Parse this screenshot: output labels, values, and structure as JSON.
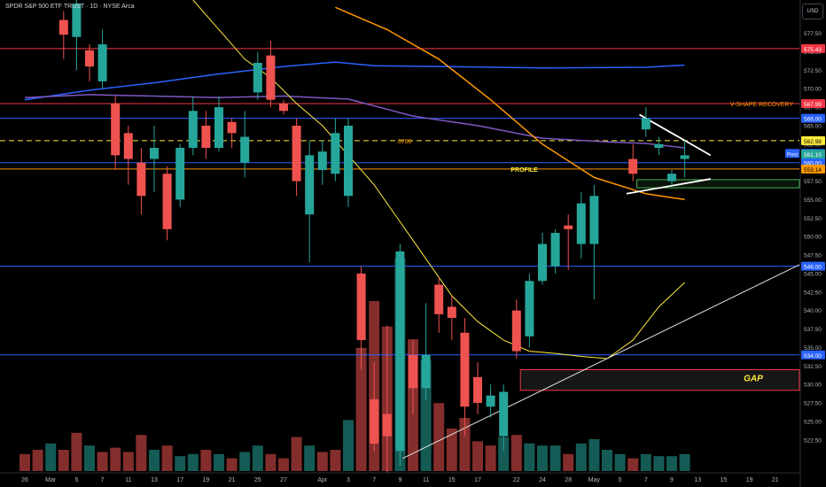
{
  "header": {
    "symbol_line": "SPDR S&P 500 ETF TRUST · 1D · NYSE Arca"
  },
  "currency": "USD",
  "colors": {
    "background": "#000000",
    "up": "#26a69a",
    "down": "#ef5350",
    "blue_line": "#2962ff",
    "red_line": "#f23645",
    "orange": "#ff9800",
    "yellow": "#ffeb3b",
    "purple": "#7e57c2",
    "axis_text": "#b2b5be"
  },
  "chart_data": {
    "type": "candlestick",
    "y_range": [
      521,
      582
    ],
    "y_ticks": [
      522.5,
      525.0,
      527.5,
      530.0,
      532.5,
      535.0,
      537.5,
      540.0,
      542.5,
      545.0,
      547.5,
      550.0,
      552.5,
      555.0,
      557.5,
      560.0,
      562.5,
      565.0,
      567.5,
      570.0,
      572.5,
      575.0,
      577.5,
      580.0
    ],
    "x_labels": [
      {
        "i": 0,
        "label": "26"
      },
      {
        "i": 2,
        "label": "Mar"
      },
      {
        "i": 4,
        "label": "5"
      },
      {
        "i": 6,
        "label": "7"
      },
      {
        "i": 8,
        "label": "11"
      },
      {
        "i": 10,
        "label": "13"
      },
      {
        "i": 12,
        "label": "17"
      },
      {
        "i": 14,
        "label": "19"
      },
      {
        "i": 16,
        "label": "21"
      },
      {
        "i": 18,
        "label": "25"
      },
      {
        "i": 20,
        "label": "27"
      },
      {
        "i": 23,
        "label": "Apr"
      },
      {
        "i": 25,
        "label": "3"
      },
      {
        "i": 27,
        "label": "7"
      },
      {
        "i": 29,
        "label": "9"
      },
      {
        "i": 31,
        "label": "11"
      },
      {
        "i": 33,
        "label": "15"
      },
      {
        "i": 35,
        "label": "17"
      },
      {
        "i": 38,
        "label": "22"
      },
      {
        "i": 40,
        "label": "24"
      },
      {
        "i": 42,
        "label": "28"
      },
      {
        "i": 44,
        "label": "May"
      },
      {
        "i": 46,
        "label": "5"
      },
      {
        "i": 48,
        "label": "7"
      },
      {
        "i": 50,
        "label": "9"
      },
      {
        "i": 52,
        "label": "13"
      },
      {
        "i": 54,
        "label": "15"
      },
      {
        "i": 56,
        "label": "19"
      },
      {
        "i": 58,
        "label": "21"
      },
      {
        "i": 60,
        "label": "23"
      }
    ],
    "candles": [
      {
        "i": 3,
        "o": 579.3,
        "h": 580.5,
        "l": 574.0,
        "c": 577.3
      },
      {
        "i": 4,
        "o": 577.0,
        "h": 582.0,
        "l": 572.5,
        "c": 581.5
      },
      {
        "i": 5,
        "o": 575.2,
        "h": 576.0,
        "l": 571.0,
        "c": 573.0
      },
      {
        "i": 6,
        "o": 571.0,
        "h": 578.0,
        "l": 570.0,
        "c": 576.0
      },
      {
        "i": 7,
        "o": 568.0,
        "h": 569.0,
        "l": 559.0,
        "c": 561.0
      },
      {
        "i": 8,
        "o": 564.0,
        "h": 565.0,
        "l": 557.0,
        "c": 560.5
      },
      {
        "i": 9,
        "o": 560.0,
        "h": 562.0,
        "l": 553.0,
        "c": 555.5
      },
      {
        "i": 10,
        "o": 560.5,
        "h": 565.0,
        "l": 556.0,
        "c": 562.0
      },
      {
        "i": 11,
        "o": 558.5,
        "h": 559.5,
        "l": 549.5,
        "c": 551.0
      },
      {
        "i": 12,
        "o": 555.0,
        "h": 562.5,
        "l": 554.0,
        "c": 562.0
      },
      {
        "i": 13,
        "o": 562.0,
        "h": 569.0,
        "l": 561.0,
        "c": 567.0
      },
      {
        "i": 14,
        "o": 565.0,
        "h": 567.0,
        "l": 560.5,
        "c": 562.0
      },
      {
        "i": 15,
        "o": 562.0,
        "h": 569.0,
        "l": 561.5,
        "c": 567.5
      },
      {
        "i": 16,
        "o": 565.5,
        "h": 566.0,
        "l": 562.0,
        "c": 564.0
      },
      {
        "i": 17,
        "o": 560.0,
        "h": 567.0,
        "l": 558.0,
        "c": 563.5
      },
      {
        "i": 18,
        "o": 569.5,
        "h": 575.0,
        "l": 568.5,
        "c": 573.5
      },
      {
        "i": 19,
        "o": 574.5,
        "h": 576.5,
        "l": 567.5,
        "c": 568.5
      },
      {
        "i": 20,
        "o": 568.0,
        "h": 568.5,
        "l": 566.5,
        "c": 567.0
      },
      {
        "i": 21,
        "o": 565.0,
        "h": 566.0,
        "l": 555.5,
        "c": 557.5
      },
      {
        "i": 22,
        "o": 553.0,
        "h": 563.0,
        "l": 546.5,
        "c": 561.0
      },
      {
        "i": 23,
        "o": 559.0,
        "h": 563.0,
        "l": 557.0,
        "c": 561.5
      },
      {
        "i": 24,
        "o": 558.5,
        "h": 566.0,
        "l": 557.5,
        "c": 564.0
      },
      {
        "i": 25,
        "o": 555.5,
        "h": 566.0,
        "l": 554.0,
        "c": 565.0
      },
      {
        "i": 26,
        "o": 545.0,
        "h": 546.0,
        "l": 532.0,
        "c": 536.0
      },
      {
        "i": 27,
        "o": 528.0,
        "h": 533.0,
        "l": 521.0,
        "c": 522.0
      },
      {
        "i": 28,
        "o": 526.0,
        "h": 538.0,
        "l": 518.0,
        "c": 523.0
      },
      {
        "i": 29,
        "o": 521.0,
        "h": 549.0,
        "l": 519.0,
        "c": 548.0
      },
      {
        "i": 30,
        "o": 534.0,
        "h": 536.0,
        "l": 526.0,
        "c": 529.5
      },
      {
        "i": 31,
        "o": 529.5,
        "h": 541.0,
        "l": 528.0,
        "c": 534.0
      },
      {
        "i": 32,
        "o": 543.5,
        "h": 544.5,
        "l": 537.0,
        "c": 539.5
      },
      {
        "i": 33,
        "o": 540.5,
        "h": 542.0,
        "l": 536.0,
        "c": 539.0
      },
      {
        "i": 34,
        "o": 537.0,
        "h": 539.0,
        "l": 523.0,
        "c": 527.0
      },
      {
        "i": 35,
        "o": 531.0,
        "h": 533.0,
        "l": 526.0,
        "c": 527.5
      },
      {
        "i": 36,
        "o": 527.0,
        "h": 530.0,
        "l": 525.5,
        "c": 528.5
      },
      {
        "i": 37,
        "o": 523.0,
        "h": 530.0,
        "l": 521.0,
        "c": 529.0
      },
      {
        "i": 38,
        "o": 540.0,
        "h": 541.5,
        "l": 533.5,
        "c": 534.5
      },
      {
        "i": 39,
        "o": 536.5,
        "h": 545.0,
        "l": 535.0,
        "c": 544.0
      },
      {
        "i": 40,
        "o": 544.0,
        "h": 550.5,
        "l": 543.5,
        "c": 549.0
      },
      {
        "i": 41,
        "o": 546.0,
        "h": 551.0,
        "l": 545.0,
        "c": 550.5
      },
      {
        "i": 42,
        "o": 551.5,
        "h": 553.0,
        "l": 545.5,
        "c": 551.0
      },
      {
        "i": 43,
        "o": 549.0,
        "h": 556.0,
        "l": 547.0,
        "c": 554.5
      },
      {
        "i": 44,
        "o": 549.0,
        "h": 557.0,
        "l": 541.5,
        "c": 555.5
      },
      {
        "i": 47,
        "o": 560.5,
        "h": 562.5,
        "l": 557.5,
        "c": 558.5
      },
      {
        "i": 48,
        "o": 564.5,
        "h": 567.5,
        "l": 563.5,
        "c": 566.0
      },
      {
        "i": 49,
        "o": 562.0,
        "h": 563.5,
        "l": 561.0,
        "c": 562.5
      },
      {
        "i": 50,
        "o": 557.5,
        "h": 559.0,
        "l": 557.0,
        "c": 558.5
      },
      {
        "i": 51,
        "o": 560.5,
        "h": 563.0,
        "l": 558.0,
        "c": 561.0
      }
    ],
    "volumes": [
      {
        "i": 0,
        "v": 0.08,
        "dir": "down"
      },
      {
        "i": 1,
        "v": 0.1,
        "dir": "down"
      },
      {
        "i": 2,
        "v": 0.13,
        "dir": "up"
      },
      {
        "i": 3,
        "v": 0.1,
        "dir": "down"
      },
      {
        "i": 4,
        "v": 0.18,
        "dir": "down"
      },
      {
        "i": 5,
        "v": 0.12,
        "dir": "up"
      },
      {
        "i": 6,
        "v": 0.09,
        "dir": "down"
      },
      {
        "i": 7,
        "v": 0.11,
        "dir": "down"
      },
      {
        "i": 8,
        "v": 0.09,
        "dir": "down"
      },
      {
        "i": 9,
        "v": 0.17,
        "dir": "down"
      },
      {
        "i": 10,
        "v": 0.1,
        "dir": "up"
      },
      {
        "i": 11,
        "v": 0.12,
        "dir": "down"
      },
      {
        "i": 12,
        "v": 0.07,
        "dir": "up"
      },
      {
        "i": 13,
        "v": 0.08,
        "dir": "up"
      },
      {
        "i": 14,
        "v": 0.1,
        "dir": "down"
      },
      {
        "i": 15,
        "v": 0.08,
        "dir": "up"
      },
      {
        "i": 16,
        "v": 0.06,
        "dir": "down"
      },
      {
        "i": 17,
        "v": 0.09,
        "dir": "up"
      },
      {
        "i": 18,
        "v": 0.12,
        "dir": "up"
      },
      {
        "i": 19,
        "v": 0.08,
        "dir": "down"
      },
      {
        "i": 20,
        "v": 0.06,
        "dir": "down"
      },
      {
        "i": 21,
        "v": 0.16,
        "dir": "down"
      },
      {
        "i": 22,
        "v": 0.12,
        "dir": "up"
      },
      {
        "i": 23,
        "v": 0.09,
        "dir": "down"
      },
      {
        "i": 24,
        "v": 0.1,
        "dir": "down"
      },
      {
        "i": 25,
        "v": 0.24,
        "dir": "up"
      },
      {
        "i": 26,
        "v": 0.58,
        "dir": "down"
      },
      {
        "i": 27,
        "v": 0.8,
        "dir": "down"
      },
      {
        "i": 28,
        "v": 0.68,
        "dir": "down"
      },
      {
        "i": 29,
        "v": 1.0,
        "dir": "up"
      },
      {
        "i": 30,
        "v": 0.62,
        "dir": "down"
      },
      {
        "i": 31,
        "v": 0.52,
        "dir": "up"
      },
      {
        "i": 32,
        "v": 0.32,
        "dir": "down"
      },
      {
        "i": 33,
        "v": 0.2,
        "dir": "down"
      },
      {
        "i": 34,
        "v": 0.25,
        "dir": "down"
      },
      {
        "i": 35,
        "v": 0.14,
        "dir": "down"
      },
      {
        "i": 36,
        "v": 0.12,
        "dir": "down"
      },
      {
        "i": 37,
        "v": 0.16,
        "dir": "up"
      },
      {
        "i": 38,
        "v": 0.17,
        "dir": "down"
      },
      {
        "i": 39,
        "v": 0.13,
        "dir": "up"
      },
      {
        "i": 40,
        "v": 0.12,
        "dir": "up"
      },
      {
        "i": 41,
        "v": 0.12,
        "dir": "up"
      },
      {
        "i": 42,
        "v": 0.08,
        "dir": "down"
      },
      {
        "i": 43,
        "v": 0.13,
        "dir": "up"
      },
      {
        "i": 44,
        "v": 0.15,
        "dir": "up"
      },
      {
        "i": 45,
        "v": 0.1,
        "dir": "up"
      },
      {
        "i": 46,
        "v": 0.08,
        "dir": "up"
      },
      {
        "i": 47,
        "v": 0.06,
        "dir": "down"
      },
      {
        "i": 48,
        "v": 0.08,
        "dir": "up"
      },
      {
        "i": 49,
        "v": 0.07,
        "dir": "up"
      },
      {
        "i": 50,
        "v": 0.07,
        "dir": "up"
      },
      {
        "i": 51,
        "v": 0.08,
        "dir": "up"
      }
    ],
    "horizontal_lines": [
      {
        "price": 575.43,
        "color": "#f23645",
        "dashed": false,
        "label": "575.43",
        "label_bg": "#f23645"
      },
      {
        "price": 567.99,
        "color": "#f23645",
        "dashed": false,
        "label": "567.99",
        "label_bg": "#f23645"
      },
      {
        "price": 566.0,
        "color": "#2962ff",
        "dashed": false,
        "label": "566.00",
        "label_bg": "#2962ff"
      },
      {
        "price": 562.98,
        "color": "#ffeb3b",
        "dashed": true,
        "label": "562.98",
        "label_bg": "#ffeb3b"
      },
      {
        "price": 560.0,
        "color": "#2962ff",
        "dashed": false,
        "label": "560.00",
        "label_bg": "#2962ff"
      },
      {
        "price": 559.14,
        "color": "#ff9800",
        "dashed": false,
        "label": "559.14",
        "label_bg": "#ff9800"
      },
      {
        "price": 546.0,
        "color": "#2962ff",
        "dashed": false,
        "label": "546.00",
        "label_bg": "#2962ff"
      },
      {
        "price": 534.0,
        "color": "#2962ff",
        "dashed": false,
        "label": "534.00",
        "label_bg": "#2962ff"
      }
    ],
    "price_tags": [
      {
        "price": 561.25,
        "label": "561.25",
        "bg": "#2962ff",
        "prefix": "Post"
      },
      {
        "price": 561.15,
        "label": "561.15",
        "bg": "#26a69a",
        "prefix": ""
      }
    ],
    "annotations": [
      {
        "text": "V-SHAPE RECOVERY",
        "price": 567.99,
        "i": 54.5,
        "color": "#ff9800"
      },
      {
        "text": ".0786",
        "price": 562.98,
        "i": 29.3,
        "color": "#ff9800"
      },
      {
        "text": "PROFILE",
        "price": 559.14,
        "i": 38.6,
        "color": "#ffeb3b"
      },
      {
        "text": "GAP",
        "price": 530.9,
        "i": 56.3,
        "color": "#ffeb3b"
      }
    ],
    "zones": [
      {
        "name": "gap",
        "i0": 38.3,
        "i1": 63,
        "p0": 532.0,
        "p1": 529.2
      },
      {
        "name": "support-box",
        "i0": 47.3,
        "i1": 63,
        "p0": 557.7,
        "p1": 556.6
      }
    ],
    "trendlines": [
      {
        "name": "flag-upper",
        "color": "#ffffff",
        "pts": [
          [
            47.5,
            566.5
          ],
          [
            53.0,
            561.0
          ]
        ]
      },
      {
        "name": "flag-lower",
        "color": "#ffffff",
        "pts": [
          [
            46.5,
            555.8
          ],
          [
            53.0,
            557.8
          ]
        ]
      },
      {
        "name": "rising-support",
        "color": "#e0e0e0",
        "pts": [
          [
            29.2,
            520.0
          ],
          [
            63,
            546.2
          ]
        ]
      }
    ],
    "moving_averages": [
      {
        "name": "ma-blue",
        "color": "#2962ff",
        "pts": [
          [
            0,
            568.5
          ],
          [
            5,
            569.8
          ],
          [
            10,
            570.8
          ],
          [
            15,
            572.0
          ],
          [
            20,
            573.0
          ],
          [
            24,
            573.6
          ],
          [
            27,
            573.1
          ],
          [
            32,
            573.0
          ],
          [
            40,
            572.8
          ],
          [
            48,
            572.9
          ],
          [
            51,
            573.2
          ]
        ]
      },
      {
        "name": "ma-purple",
        "color": "#7e57c2",
        "pts": [
          [
            0,
            568.8
          ],
          [
            5,
            569.2
          ],
          [
            10,
            569.0
          ],
          [
            15,
            568.8
          ],
          [
            20,
            569.0
          ],
          [
            25,
            568.6
          ],
          [
            30,
            566.3
          ],
          [
            35,
            565.0
          ],
          [
            40,
            563.3
          ],
          [
            45,
            562.8
          ],
          [
            48,
            562.6
          ],
          [
            51,
            562.0
          ]
        ]
      },
      {
        "name": "ma-orange",
        "color": "#ff9800",
        "pts": [
          [
            24,
            581.0
          ],
          [
            28,
            578.0
          ],
          [
            32,
            574.0
          ],
          [
            36,
            568.5
          ],
          [
            40,
            562.5
          ],
          [
            44,
            558.0
          ],
          [
            48,
            555.8
          ],
          [
            51,
            555.0
          ]
        ]
      },
      {
        "name": "ma-yellow",
        "color": "#ffeb3b",
        "pts": [
          [
            13,
            582.0
          ],
          [
            15,
            578.0
          ],
          [
            17,
            574.0
          ],
          [
            19,
            571.5
          ],
          [
            21,
            568.0
          ],
          [
            23,
            565.0
          ],
          [
            25,
            561.0
          ],
          [
            27,
            557.0
          ],
          [
            29,
            552.0
          ],
          [
            31,
            547.0
          ],
          [
            33,
            542.0
          ],
          [
            35,
            538.5
          ],
          [
            37,
            536.0
          ],
          [
            39,
            534.5
          ],
          [
            41,
            534.2
          ],
          [
            43,
            533.8
          ],
          [
            45,
            533.5
          ],
          [
            47,
            536.0
          ],
          [
            49,
            540.5
          ],
          [
            51,
            543.8
          ]
        ]
      }
    ]
  }
}
